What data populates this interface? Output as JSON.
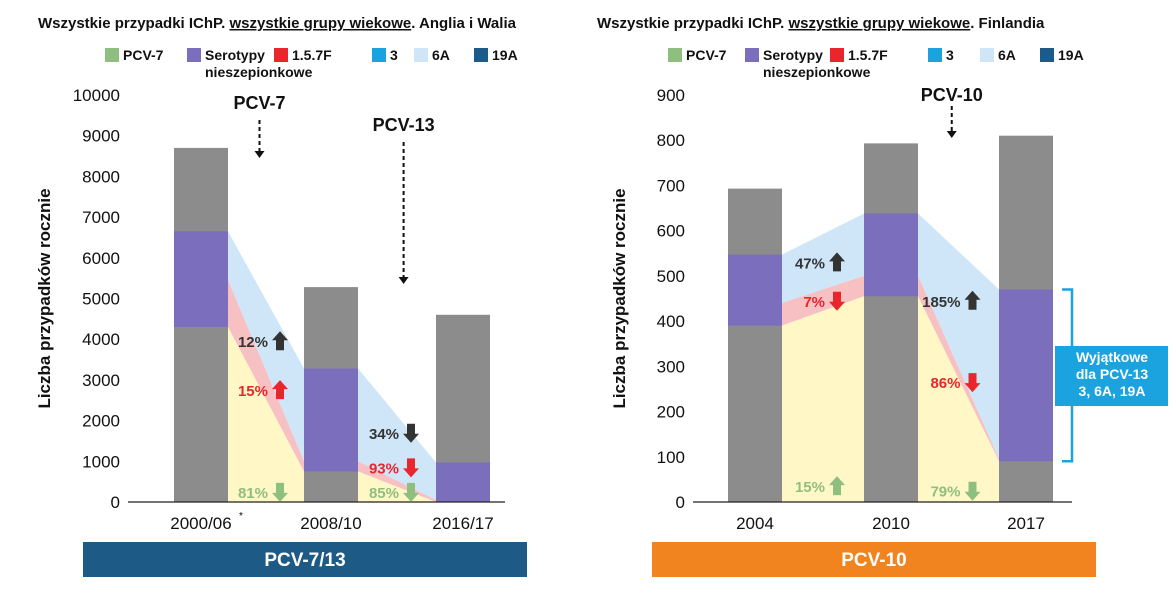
{
  "colors": {
    "pcv7": "#8fbf7f",
    "non_vaccine": "#7b6fbd",
    "s157f": "#e8262c",
    "s3": "#1aa3df",
    "s6a": "#cfe6f8",
    "s19a": "#1c5a8a",
    "total": "#8c8c8c",
    "band_yellow": "#fff7c6",
    "band_red": "#f7c0c3",
    "band_blue": "#cfe6f8",
    "pct_dark": "#333333",
    "pct_red": "#e8262c",
    "pct_green": "#8fbf7f",
    "banner_left": "#1d5a85",
    "banner_right": "#f28420",
    "callout": "#1aa3df"
  },
  "legend": [
    {
      "label": "PCV-7",
      "color": "#8fbf7f"
    },
    {
      "label": "Serotypy nieszepionkowe",
      "line1": "Serotypy",
      "line2": "nieszepionkowe",
      "color": "#7b6fbd"
    },
    {
      "label": "1.5.7F",
      "color": "#e8262c"
    },
    {
      "label": "3",
      "color": "#1aa3df"
    },
    {
      "label": "6A",
      "color": "#cfe6f8"
    },
    {
      "label": "19A",
      "color": "#1c5a8a"
    }
  ],
  "chart_data": [
    {
      "type": "bar",
      "title": "Wszystkie przypadki IChP. wszystkie grupy wiekowe. Anglia i Walia",
      "title_parts": [
        "Wszystkie przypadki IChP. ",
        "wszystkie grupy wiekowe",
        ". Anglia i Walia"
      ],
      "ylabel": "Liczba przypadków rocznie",
      "ylim": [
        0,
        10000
      ],
      "yticks": [
        0,
        1000,
        2000,
        3000,
        4000,
        5000,
        6000,
        7000,
        8000,
        9000,
        10000
      ],
      "categories": [
        "2000/06",
        "2008/10",
        "2016/17"
      ],
      "category_note": "*",
      "totals": [
        8700,
        5280,
        4600
      ],
      "non_vaccine_bottom": [
        4300,
        750,
        0
      ],
      "non_vaccine_top": [
        6650,
        3280,
        970
      ],
      "vaccine_bands": {
        "pcv7_top": [
          4300,
          750,
          0
        ],
        "s157f_top": [
          5450,
          1000,
          50
        ],
        "upper_top": [
          6650,
          3280,
          970
        ]
      },
      "annotations": [
        {
          "label": "PCV-7",
          "x_cat": 0.45
        },
        {
          "label": "PCV-13",
          "x_cat": 1.55
        }
      ],
      "changes": [
        {
          "text": "12%",
          "dir": "up",
          "group": "other",
          "x_cat": 0.5,
          "y": 3950
        },
        {
          "text": "15%",
          "dir": "up",
          "group": "1.5.7F",
          "x_cat": 0.5,
          "y": 2750
        },
        {
          "text": "81%",
          "dir": "down",
          "group": "PCV-7",
          "x_cat": 0.5,
          "y": 250
        },
        {
          "text": "34%",
          "dir": "down",
          "group": "other",
          "x_cat": 1.5,
          "y": 1700
        },
        {
          "text": "93%",
          "dir": "down",
          "group": "1.5.7F",
          "x_cat": 1.5,
          "y": 850
        },
        {
          "text": "85%",
          "dir": "down",
          "group": "PCV-7",
          "x_cat": 1.5,
          "y": 250
        }
      ],
      "banner": "PCV-7/13"
    },
    {
      "type": "bar",
      "title": "Wszystkie przypadki IChP. wszystkie grupy wiekowe. Finlandia",
      "title_parts": [
        "Wszystkie przypadki IChP. ",
        "wszystkie grupy wiekowe",
        ". Finlandia"
      ],
      "ylabel": "Liczba przypadków rocznie",
      "ylim": [
        0,
        900
      ],
      "yticks": [
        0,
        100,
        200,
        300,
        400,
        500,
        600,
        700,
        800,
        900
      ],
      "categories": [
        "2004",
        "2010",
        "2017"
      ],
      "totals": [
        693,
        793,
        810
      ],
      "non_vaccine_bottom": [
        390,
        455,
        90
      ],
      "non_vaccine_top": [
        547,
        638,
        470
      ],
      "vaccine_bands": {
        "pcv7_top": [
          390,
          455,
          90
        ],
        "s157f_top": [
          440,
          500,
          95
        ],
        "upper_top": [
          547,
          638,
          470
        ]
      },
      "annotations": [
        {
          "label": "PCV-10",
          "x_cat": 1.45
        }
      ],
      "changes": [
        {
          "text": "47%",
          "dir": "up",
          "group": "other",
          "x_cat": 0.5,
          "y": 530
        },
        {
          "text": "7%",
          "dir": "down",
          "group": "1.5.7F",
          "x_cat": 0.5,
          "y": 445
        },
        {
          "text": "15%",
          "dir": "up",
          "group": "PCV-7",
          "x_cat": 0.5,
          "y": 35
        },
        {
          "text": "185%",
          "dir": "up",
          "group": "other",
          "x_cat": 1.5,
          "y": 445
        },
        {
          "text": "86%",
          "dir": "down",
          "group": "1.5.7F",
          "x_cat": 1.5,
          "y": 265
        },
        {
          "text": "79%",
          "dir": "down",
          "group": "PCV-7",
          "x_cat": 1.5,
          "y": 25
        }
      ],
      "callout": {
        "lines": [
          "Wyjątkowe",
          "dla PCV-13",
          "3, 6A, 19A"
        ],
        "range": [
          90,
          470
        ]
      },
      "banner": "PCV-10"
    }
  ]
}
